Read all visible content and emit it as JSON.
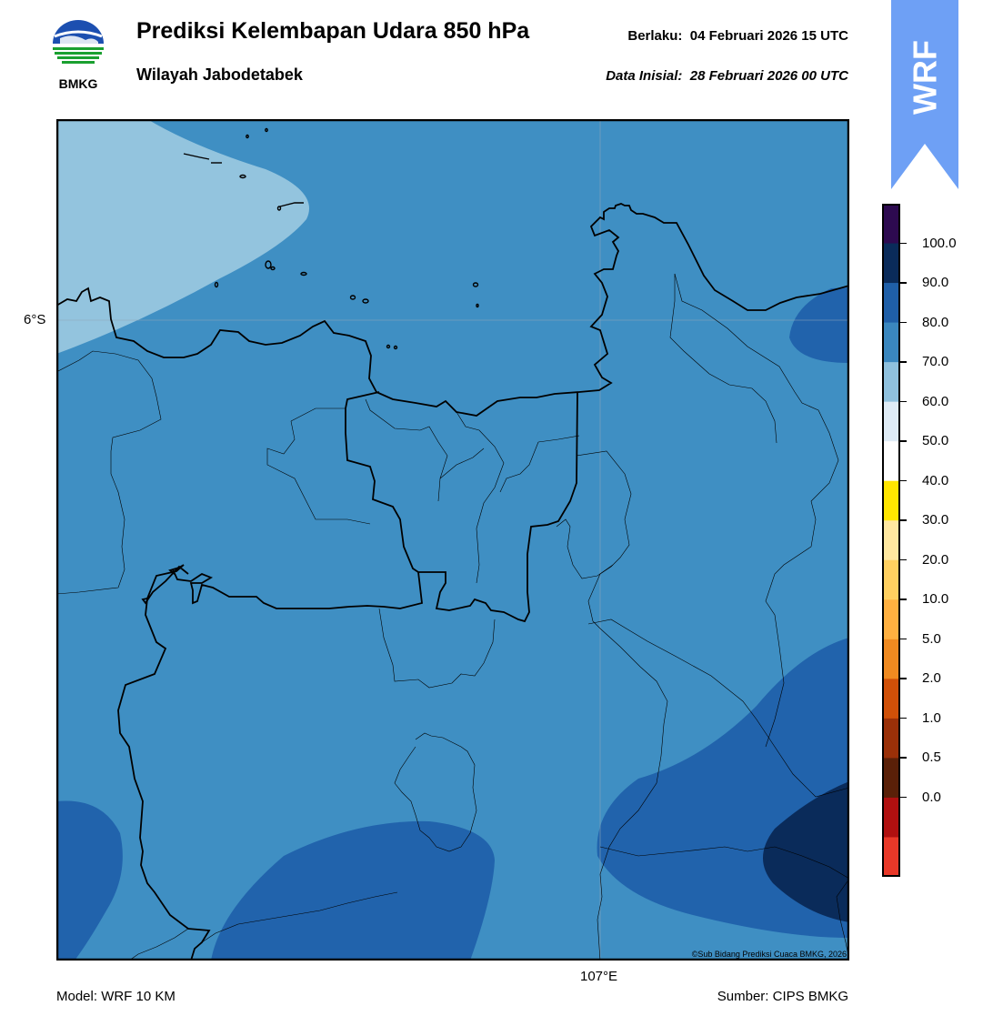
{
  "header": {
    "title": "Prediksi Kelembapan Udara 850 hPa",
    "subtitle": "Wilayah Jabodetabek",
    "valid_label": "Berlaku:",
    "valid_value": "04 Februari 2026 15 UTC",
    "initial_label": "Data Inisial:",
    "initial_value": "28 Februari 2026 00 UTC"
  },
  "logo": {
    "text": "BMKG",
    "icon": "bmkg-logo-icon"
  },
  "badge": {
    "text": "WRF",
    "color": "#6ea0f5"
  },
  "map": {
    "lat_label": "6°S",
    "lon_label": "107°E",
    "copyright": "©Sub Bidang Prediksi Cuaca BMKG, 2026"
  },
  "footer": {
    "model": "Model: WRF 10 KM",
    "source": "Sumber: CIPS BMKG"
  },
  "colorbar": {
    "labels": [
      "100.0",
      "90.0",
      "80.0",
      "70.0",
      "60.0",
      "50.0",
      "40.0",
      "30.0",
      "20.0",
      "10.0",
      "5.0",
      "2.0",
      "1.0",
      "0.5",
      "0.0"
    ],
    "colors": [
      "#2d0a50",
      "#0a2b5a",
      "#1f5fa8",
      "#3a87bf",
      "#8fc1de",
      "#dfecf6",
      "#ffffff",
      "#ffe600",
      "#ffe8a0",
      "#ffd060",
      "#ffb040",
      "#f08a20",
      "#d05008",
      "#9a3008",
      "#5a2008",
      "#b01010",
      "#e83828"
    ]
  }
}
